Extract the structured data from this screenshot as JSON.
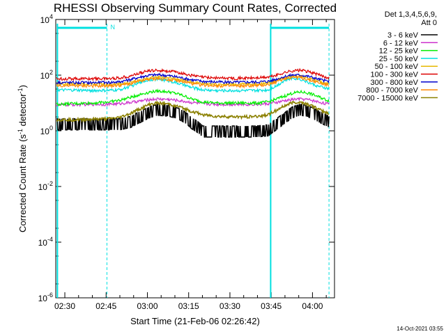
{
  "chart_data": {
    "type": "line",
    "title": "RHESSI Observing Summary Count Rates, Corrected",
    "xlabel": "Start Time (21-Feb-06 02:26:42)",
    "ylabel_main": "Corrected Count Rate (s",
    "ylabel_sup1": "-1",
    "ylabel_mid": " detector",
    "ylabel_sup2": "-1",
    "ylabel_end": ")",
    "yscale": "log",
    "xlim_min": [
      146.7,
      248
    ],
    "ylim_exp": [
      -6,
      4
    ],
    "x_ticks": [
      {
        "min": 150,
        "label": "02:30"
      },
      {
        "min": 165,
        "label": "02:45"
      },
      {
        "min": 180,
        "label": "03:00"
      },
      {
        "min": 195,
        "label": "03:15"
      },
      {
        "min": 210,
        "label": "03:30"
      },
      {
        "min": 225,
        "label": "03:45"
      },
      {
        "min": 240,
        "label": "04:00"
      }
    ],
    "y_ticks": [
      {
        "exp": 4,
        "base": "10",
        "sup": "4"
      },
      {
        "exp": 2,
        "base": "10",
        "sup": "2"
      },
      {
        "exp": 0,
        "base": "10",
        "sup": "0"
      },
      {
        "exp": -2,
        "base": "10",
        "sup": "-2"
      },
      {
        "exp": -4,
        "base": "10",
        "sup": "-4"
      },
      {
        "exp": -6,
        "base": "10",
        "sup": "-6"
      }
    ],
    "legend_header": [
      "Det 1,3,4,5,6,9,",
      "Att 0"
    ],
    "series": [
      {
        "name": "3 - 6 keV",
        "color": "#000000",
        "x": [
          147,
          153,
          160,
          166,
          170,
          174,
          178,
          181,
          184,
          188,
          192,
          196,
          200,
          205,
          210,
          215,
          220,
          224,
          227,
          230,
          233,
          236,
          239,
          242,
          245,
          246
        ],
        "y": [
          1.8,
          1.8,
          1.8,
          1.8,
          1.8,
          2.2,
          3.5,
          5,
          6,
          5.5,
          4,
          2,
          1,
          1,
          1,
          1,
          1,
          1.1,
          1.8,
          3,
          5,
          6,
          5,
          3.5,
          2.5,
          2.2
        ]
      },
      {
        "name": "6 - 12 keV",
        "color": "#cc33cc",
        "x": [
          147,
          153,
          160,
          166,
          170,
          174,
          178,
          181,
          184,
          188,
          192,
          196,
          200,
          205,
          210,
          215,
          220,
          224,
          227,
          230,
          233,
          236,
          239,
          242,
          245,
          246
        ],
        "y": [
          8.5,
          8.7,
          9,
          9,
          9.5,
          10.5,
          12,
          13.5,
          14,
          13.5,
          12,
          10.5,
          9.5,
          9,
          9,
          9,
          9,
          9.5,
          10.5,
          12,
          13.5,
          14,
          13,
          11,
          9.5,
          9
        ]
      },
      {
        "name": "12 - 25 keV",
        "color": "#00ee00",
        "x": [
          147,
          153,
          160,
          166,
          170,
          174,
          178,
          181,
          184,
          188,
          192,
          196,
          200,
          205,
          210,
          215,
          220,
          224,
          227,
          230,
          233,
          236,
          239,
          242,
          245,
          246
        ],
        "y": [
          9,
          9.5,
          10,
          11,
          12.5,
          16,
          21,
          25,
          27,
          25,
          20,
          14,
          11,
          10,
          10,
          10,
          10,
          11,
          14,
          18,
          23,
          25,
          22,
          17,
          13,
          12
        ]
      },
      {
        "name": "25 - 50 keV",
        "color": "#00e0e0",
        "x": [
          147,
          153,
          160,
          166,
          170,
          174,
          178,
          181,
          184,
          188,
          192,
          196,
          200,
          205,
          210,
          215,
          220,
          224,
          227,
          230,
          233,
          236,
          239,
          242,
          245,
          246
        ],
        "y": [
          29,
          29,
          28,
          28,
          30,
          40,
          57,
          70,
          72,
          62,
          48,
          36,
          30,
          28,
          28,
          28,
          28,
          30,
          42,
          65,
          80,
          70,
          52,
          40,
          34,
          32
        ]
      },
      {
        "name": "50 - 100 keV",
        "color": "#e6b800",
        "x": [
          147,
          153,
          160,
          166,
          170,
          174,
          178,
          181,
          184,
          188,
          192,
          196,
          200,
          205,
          210,
          215,
          220,
          224,
          227,
          230,
          233,
          236,
          239,
          242,
          245,
          246
        ],
        "y": [
          48,
          48,
          47,
          47,
          48,
          55,
          68,
          80,
          85,
          80,
          68,
          56,
          50,
          48,
          47,
          47,
          48,
          52,
          65,
          82,
          95,
          90,
          75,
          60,
          50,
          48
        ]
      },
      {
        "name": "100 - 300 keV",
        "color": "#dd0000",
        "x": [
          147,
          153,
          160,
          166,
          170,
          174,
          178,
          181,
          184,
          188,
          192,
          196,
          200,
          205,
          210,
          215,
          220,
          224,
          227,
          230,
          233,
          236,
          239,
          242,
          245,
          246
        ],
        "y": [
          75,
          75,
          75,
          76,
          80,
          95,
          125,
          145,
          150,
          140,
          120,
          98,
          85,
          80,
          78,
          78,
          80,
          85,
          100,
          125,
          145,
          150,
          130,
          105,
          85,
          82
        ]
      },
      {
        "name": "300 - 800 keV",
        "color": "#0000cc",
        "x": [
          147,
          153,
          160,
          166,
          170,
          174,
          178,
          181,
          184,
          188,
          192,
          196,
          200,
          205,
          210,
          215,
          220,
          224,
          227,
          230,
          233,
          236,
          239,
          242,
          245,
          246
        ],
        "y": [
          55,
          54,
          54,
          55,
          58,
          70,
          88,
          100,
          103,
          95,
          82,
          68,
          60,
          57,
          56,
          56,
          57,
          60,
          72,
          90,
          102,
          100,
          88,
          72,
          62,
          60
        ]
      },
      {
        "name": "800 - 7000 keV",
        "color": "#ff8800",
        "x": [
          147,
          153,
          160,
          166,
          170,
          174,
          178,
          181,
          184,
          188,
          192,
          196,
          200,
          205,
          210,
          215,
          220,
          224,
          227,
          230,
          233,
          236,
          239,
          242,
          245,
          246
        ],
        "y": [
          42,
          42,
          41,
          41,
          43,
          50,
          62,
          72,
          75,
          70,
          60,
          50,
          44,
          42,
          41,
          41,
          42,
          46,
          58,
          75,
          85,
          80,
          66,
          54,
          45,
          43
        ]
      },
      {
        "name": "7000 - 15000 keV",
        "color": "#8b8000",
        "x": [
          147,
          153,
          160,
          166,
          170,
          174,
          178,
          181,
          184,
          188,
          192,
          196,
          200,
          205,
          210,
          215,
          220,
          224,
          227,
          230,
          233,
          236,
          239,
          242,
          245,
          246
        ],
        "y": [
          2.5,
          2.5,
          2.6,
          2.7,
          3,
          4.2,
          6.5,
          9,
          10,
          9,
          7,
          5,
          3.8,
          3.3,
          3.2,
          3.2,
          3.3,
          3.8,
          5.5,
          8,
          10.5,
          10.5,
          8.5,
          6,
          4.5,
          4
        ]
      }
    ],
    "background_series": {
      "name": "",
      "color": "#00e0e0",
      "x": [
        147.3,
        147.3,
        147.3
      ],
      "y_exp": [
        -6,
        3.7,
        3.7
      ]
    },
    "attenuator_bars": [
      {
        "start": 147.3,
        "end": 165.3
      },
      {
        "start": 224.8,
        "end": 246
      }
    ],
    "saa_label": "N",
    "vertical_lines": {
      "solid": [
        147.3,
        224.8
      ],
      "dashed": [
        165.3,
        246
      ]
    },
    "legend_placement": "top-right",
    "grid": false
  },
  "footer": {
    "timestamp": "14-Oct-2021 03:55"
  }
}
